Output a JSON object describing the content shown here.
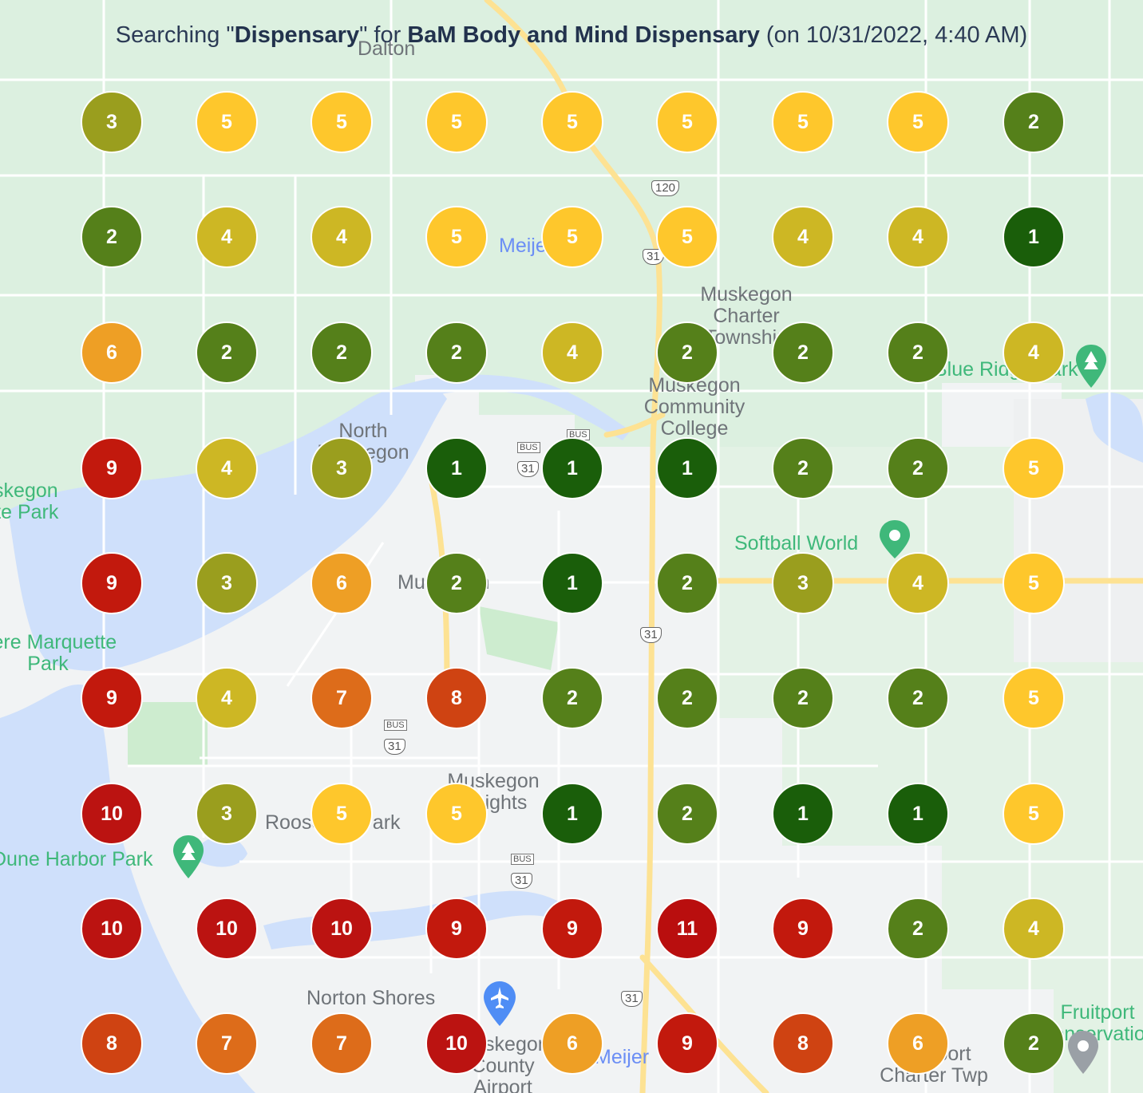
{
  "header": {
    "prefix": "Searching \"",
    "keyword": "Dispensary",
    "middle": "\" for ",
    "business": "BaM Body and Mind Dispensary",
    "suffix": " (on 10/31/2022, 4:40 AM)"
  },
  "colors": {
    "water": "#cfe0fb",
    "land": "#f1f3f4",
    "green_area": "#dcf0e0",
    "road_major": "#fde293",
    "road_minor": "#ffffff"
  },
  "rank_colors": {
    "1": "#1a5e0a",
    "2": "#55801a",
    "3": "#9a9e1e",
    "4": "#cdb724",
    "5": "#fec72c",
    "6": "#ee9f25",
    "7": "#dd6c1a",
    "8": "#cf4312",
    "9": "#c2190d",
    "10": "#bb1311",
    "11": "#b90e0e"
  },
  "grid": [
    [
      "3",
      "5",
      "5",
      "5",
      "5",
      "5",
      "5",
      "5",
      "2"
    ],
    [
      "2",
      "4",
      "4",
      "5",
      "5",
      "5",
      "4",
      "4",
      "1"
    ],
    [
      "6",
      "2",
      "2",
      "2",
      "4",
      "2",
      "2",
      "2",
      "4"
    ],
    [
      "9",
      "4",
      "3",
      "1",
      "1",
      "1",
      "2",
      "2",
      "5"
    ],
    [
      "9",
      "3",
      "6",
      "2",
      "1",
      "2",
      "3",
      "4",
      "5"
    ],
    [
      "9",
      "4",
      "7",
      "8",
      "2",
      "2",
      "2",
      "2",
      "5"
    ],
    [
      "10",
      "3",
      "5",
      "5",
      "1",
      "2",
      "1",
      "1",
      "5"
    ],
    [
      "10",
      "10",
      "10",
      "9",
      "9",
      "11",
      "9",
      "2",
      "4"
    ],
    [
      "8",
      "7",
      "7",
      "10",
      "6",
      "9",
      "8",
      "6",
      "2"
    ]
  ],
  "map_labels": {
    "dalton": "Dalton",
    "meijer_top": "Meijer",
    "muskegon_charter": "Muskegon Charter Township",
    "north_muskegon": "North Muskegon",
    "muskegon_cc": "Muskegon Community College",
    "muskegon_state_park": "Muskegon State Park",
    "blue_ridge": "Blue Ridge Park",
    "softball_world": "Softball World",
    "muskegon": "Muskegon",
    "pere_marquette": "Pere Marquette Park",
    "muskegon_heights": "Muskegon Heights",
    "roosevelt_park": "Roosevelt Park",
    "dune_harbor": "Dune Harbor Park",
    "norton_shores": "Norton Shores",
    "county_airport": "Muskegon County Airport",
    "meijer_bottom": "Meijer",
    "fruitport": "Fruitport Charter Twp",
    "fruitport_conservation": "Fruitport Conservation"
  },
  "road_shields": {
    "us31_a": "31",
    "us31_b": "31",
    "us31_c": "31",
    "us31_d": "31",
    "bus31_a": "31",
    "bus31_b": "31",
    "bus31_c": "31",
    "m120": "120",
    "bus": "BUS"
  }
}
